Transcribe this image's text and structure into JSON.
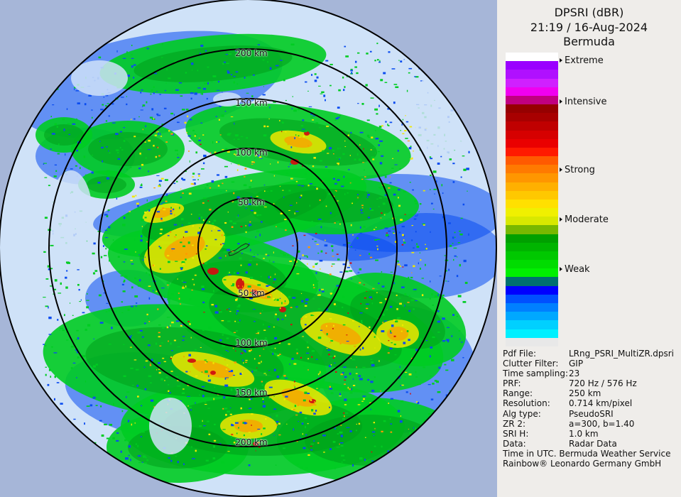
{
  "panel": {
    "title": "DPSRI (dBR)",
    "datetime": "21:19 / 16-Aug-2024",
    "station": "Bermuda"
  },
  "legend": {
    "labels": [
      {
        "text": "Extreme",
        "level": 0.03
      },
      {
        "text": "Intensive",
        "level": 0.17
      },
      {
        "text": "Strong",
        "level": 0.4
      },
      {
        "text": "Moderate",
        "level": 0.57
      },
      {
        "text": "Weak",
        "level": 0.74
      }
    ],
    "colors": [
      "#ffffff",
      "#9a00ff",
      "#b010ff",
      "#d020ff",
      "#f000f0",
      "#c00080",
      "#960000",
      "#a80000",
      "#c00000",
      "#d60000",
      "#ea0000",
      "#ff1a00",
      "#ff5a00",
      "#ff7a00",
      "#ff9600",
      "#ffb000",
      "#ffc800",
      "#ffe000",
      "#f0f000",
      "#d8e800",
      "#78b800",
      "#00a000",
      "#00b400",
      "#00c800",
      "#00dc00",
      "#00f000",
      "#007070",
      "#0000ff",
      "#0050ff",
      "#0080ff",
      "#00a8ff",
      "#00d0ff",
      "#00f0ff",
      "#e8e8e8"
    ]
  },
  "map": {
    "range_rings": [
      "50 km",
      "100 km",
      "150 km",
      "200 km"
    ],
    "colors": {
      "outside": "#a6b6d8",
      "coverage": "#cfe2f8",
      "ring": "#000000",
      "weak_blue": "#0a4cf0",
      "light_green": "#00cc22",
      "green": "#009e1a",
      "yellow": "#f0e800",
      "orange": "#ff9a00",
      "red": "#d01010"
    }
  },
  "meta": [
    {
      "key": "Pdf File:",
      "value": "LRng_PSRI_MultiZR.dpsri"
    },
    {
      "key": "Clutter Filter:",
      "value": "GIP"
    },
    {
      "key": "Time sampling:",
      "value": "23"
    },
    {
      "key": "PRF:",
      "value": "720 Hz / 576 Hz"
    },
    {
      "key": "Range:",
      "value": "250 km"
    },
    {
      "key": "Resolution:",
      "value": "0.714 km/pixel"
    },
    {
      "key": "Alg type:",
      "value": "PseudoSRI"
    },
    {
      "key": "ZR 2:",
      "value": "a=300, b=1.40"
    },
    {
      "key": "SRI H:",
      "value": "1.0 km"
    },
    {
      "key": "Data:",
      "value": "Radar Data"
    }
  ],
  "footer": {
    "time_note": "Time in UTC. Bermuda Weather Service",
    "credit": "Rainbow® Leonardo Germany GmbH"
  }
}
